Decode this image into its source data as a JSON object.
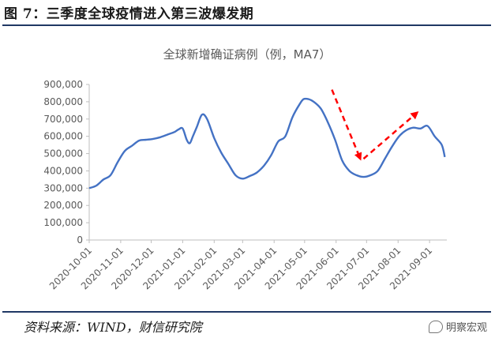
{
  "figure": {
    "title": "图 7：三季度全球疫情进入第三波爆发期",
    "source": "资料来源：WIND，财信研究院",
    "watermark": "明察宏观"
  },
  "colors": {
    "line": "#4472c4",
    "arrow": "#ff0000",
    "rule": "#1f3864"
  },
  "chart_data": {
    "type": "line",
    "title": "全球新增确证病例（例，MA7）",
    "xlabel": "",
    "ylabel": "",
    "ylim": [
      0,
      900000
    ],
    "yticks": [
      0,
      100000,
      200000,
      300000,
      400000,
      500000,
      600000,
      700000,
      800000,
      900000
    ],
    "ytick_labels": [
      "0",
      "100,000",
      "200,000",
      "300,000",
      "400,000",
      "500,000",
      "600,000",
      "700,000",
      "800,000",
      "900,000"
    ],
    "xtick_labels": [
      "2020-10-01",
      "2020-11-01",
      "2020-12-01",
      "2021-01-01",
      "2021-02-01",
      "2021-03-01",
      "2021-04-01",
      "2021-05-01",
      "2021-06-01",
      "2021-07-01",
      "2021-08-01",
      "2021-09-01"
    ],
    "grid": false,
    "legend": "none",
    "series": [
      {
        "x": [
          "2020-10-01",
          "2020-10-08",
          "2020-10-15",
          "2020-10-22",
          "2020-10-29",
          "2020-11-05",
          "2020-11-12",
          "2020-11-19",
          "2020-11-26",
          "2020-12-03",
          "2020-12-10",
          "2020-12-17",
          "2020-12-24",
          "2020-12-28",
          "2021-01-01",
          "2021-01-05",
          "2021-01-08",
          "2021-01-11",
          "2021-01-15",
          "2021-01-20",
          "2021-01-25",
          "2021-02-01",
          "2021-02-08",
          "2021-02-15",
          "2021-02-22",
          "2021-03-01",
          "2021-03-08",
          "2021-03-15",
          "2021-03-22",
          "2021-03-29",
          "2021-04-05",
          "2021-04-12",
          "2021-04-19",
          "2021-04-26",
          "2021-04-30",
          "2021-05-05",
          "2021-05-10",
          "2021-05-17",
          "2021-05-24",
          "2021-05-31",
          "2021-06-07",
          "2021-06-14",
          "2021-06-21",
          "2021-06-28",
          "2021-07-05",
          "2021-07-12",
          "2021-07-19",
          "2021-07-26",
          "2021-08-02",
          "2021-08-09",
          "2021-08-16",
          "2021-08-23",
          "2021-08-30",
          "2021-09-06",
          "2021-09-13",
          "2021-09-16"
        ],
        "y": [
          300000,
          315000,
          350000,
          375000,
          450000,
          515000,
          545000,
          575000,
          580000,
          585000,
          595000,
          610000,
          625000,
          640000,
          645000,
          580000,
          560000,
          600000,
          655000,
          725000,
          700000,
          590000,
          505000,
          440000,
          375000,
          355000,
          370000,
          390000,
          430000,
          490000,
          570000,
          600000,
          710000,
          785000,
          815000,
          815000,
          800000,
          760000,
          680000,
          580000,
          460000,
          400000,
          375000,
          365000,
          375000,
          400000,
          470000,
          540000,
          600000,
          635000,
          650000,
          645000,
          660000,
          600000,
          550000,
          480000
        ]
      }
    ],
    "annotations": [
      {
        "type": "arrow",
        "from": "2021-05-17",
        "to": "2021-06-21",
        "direction": "down"
      },
      {
        "type": "arrow",
        "from": "2021-06-28",
        "to": "2021-08-09",
        "direction": "up"
      }
    ]
  }
}
